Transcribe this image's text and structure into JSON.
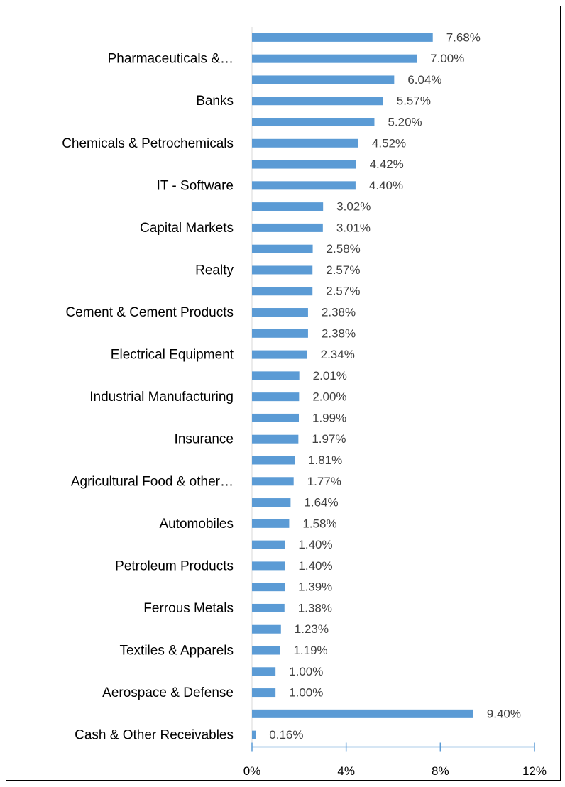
{
  "chart_data": {
    "type": "bar",
    "orientation": "horizontal",
    "color": "#5b9bd5",
    "categories": [
      null,
      "Pharmaceuticals &…",
      null,
      "Banks",
      null,
      "Chemicals & Petrochemicals",
      null,
      "IT - Software",
      null,
      "Capital Markets",
      null,
      "Realty",
      null,
      "Cement & Cement Products",
      null,
      "Electrical Equipment",
      null,
      "Industrial Manufacturing",
      null,
      "Insurance",
      null,
      "Agricultural Food & other…",
      null,
      "Automobiles",
      null,
      "Petroleum Products",
      null,
      "Ferrous Metals",
      null,
      "Textiles & Apparels",
      null,
      "Aerospace & Defense",
      null,
      "Cash & Other Receivables"
    ],
    "values": [
      7.68,
      7.0,
      6.04,
      5.57,
      5.2,
      4.52,
      4.42,
      4.4,
      3.02,
      3.01,
      2.58,
      2.57,
      2.57,
      2.38,
      2.38,
      2.34,
      2.01,
      2.0,
      1.99,
      1.97,
      1.81,
      1.77,
      1.64,
      1.58,
      1.4,
      1.4,
      1.39,
      1.38,
      1.23,
      1.19,
      1.0,
      1.0,
      9.4,
      0.16
    ],
    "value_labels": [
      "7.68%",
      "7.00%",
      "6.04%",
      "5.57%",
      "5.20%",
      "4.52%",
      "4.42%",
      "4.40%",
      "3.02%",
      "3.01%",
      "2.58%",
      "2.57%",
      "2.57%",
      "2.38%",
      "2.38%",
      "2.34%",
      "2.01%",
      "2.00%",
      "1.99%",
      "1.97%",
      "1.81%",
      "1.77%",
      "1.64%",
      "1.58%",
      "1.40%",
      "1.40%",
      "1.39%",
      "1.38%",
      "1.23%",
      "1.19%",
      "1.00%",
      "1.00%",
      "9.40%",
      "0.16%"
    ],
    "xlim": [
      0,
      12
    ],
    "xticks": [
      {
        "value": 0,
        "label": "0%"
      },
      {
        "value": 4,
        "label": "4%"
      },
      {
        "value": 8,
        "label": "8%"
      },
      {
        "value": 12,
        "label": "12%"
      }
    ]
  }
}
